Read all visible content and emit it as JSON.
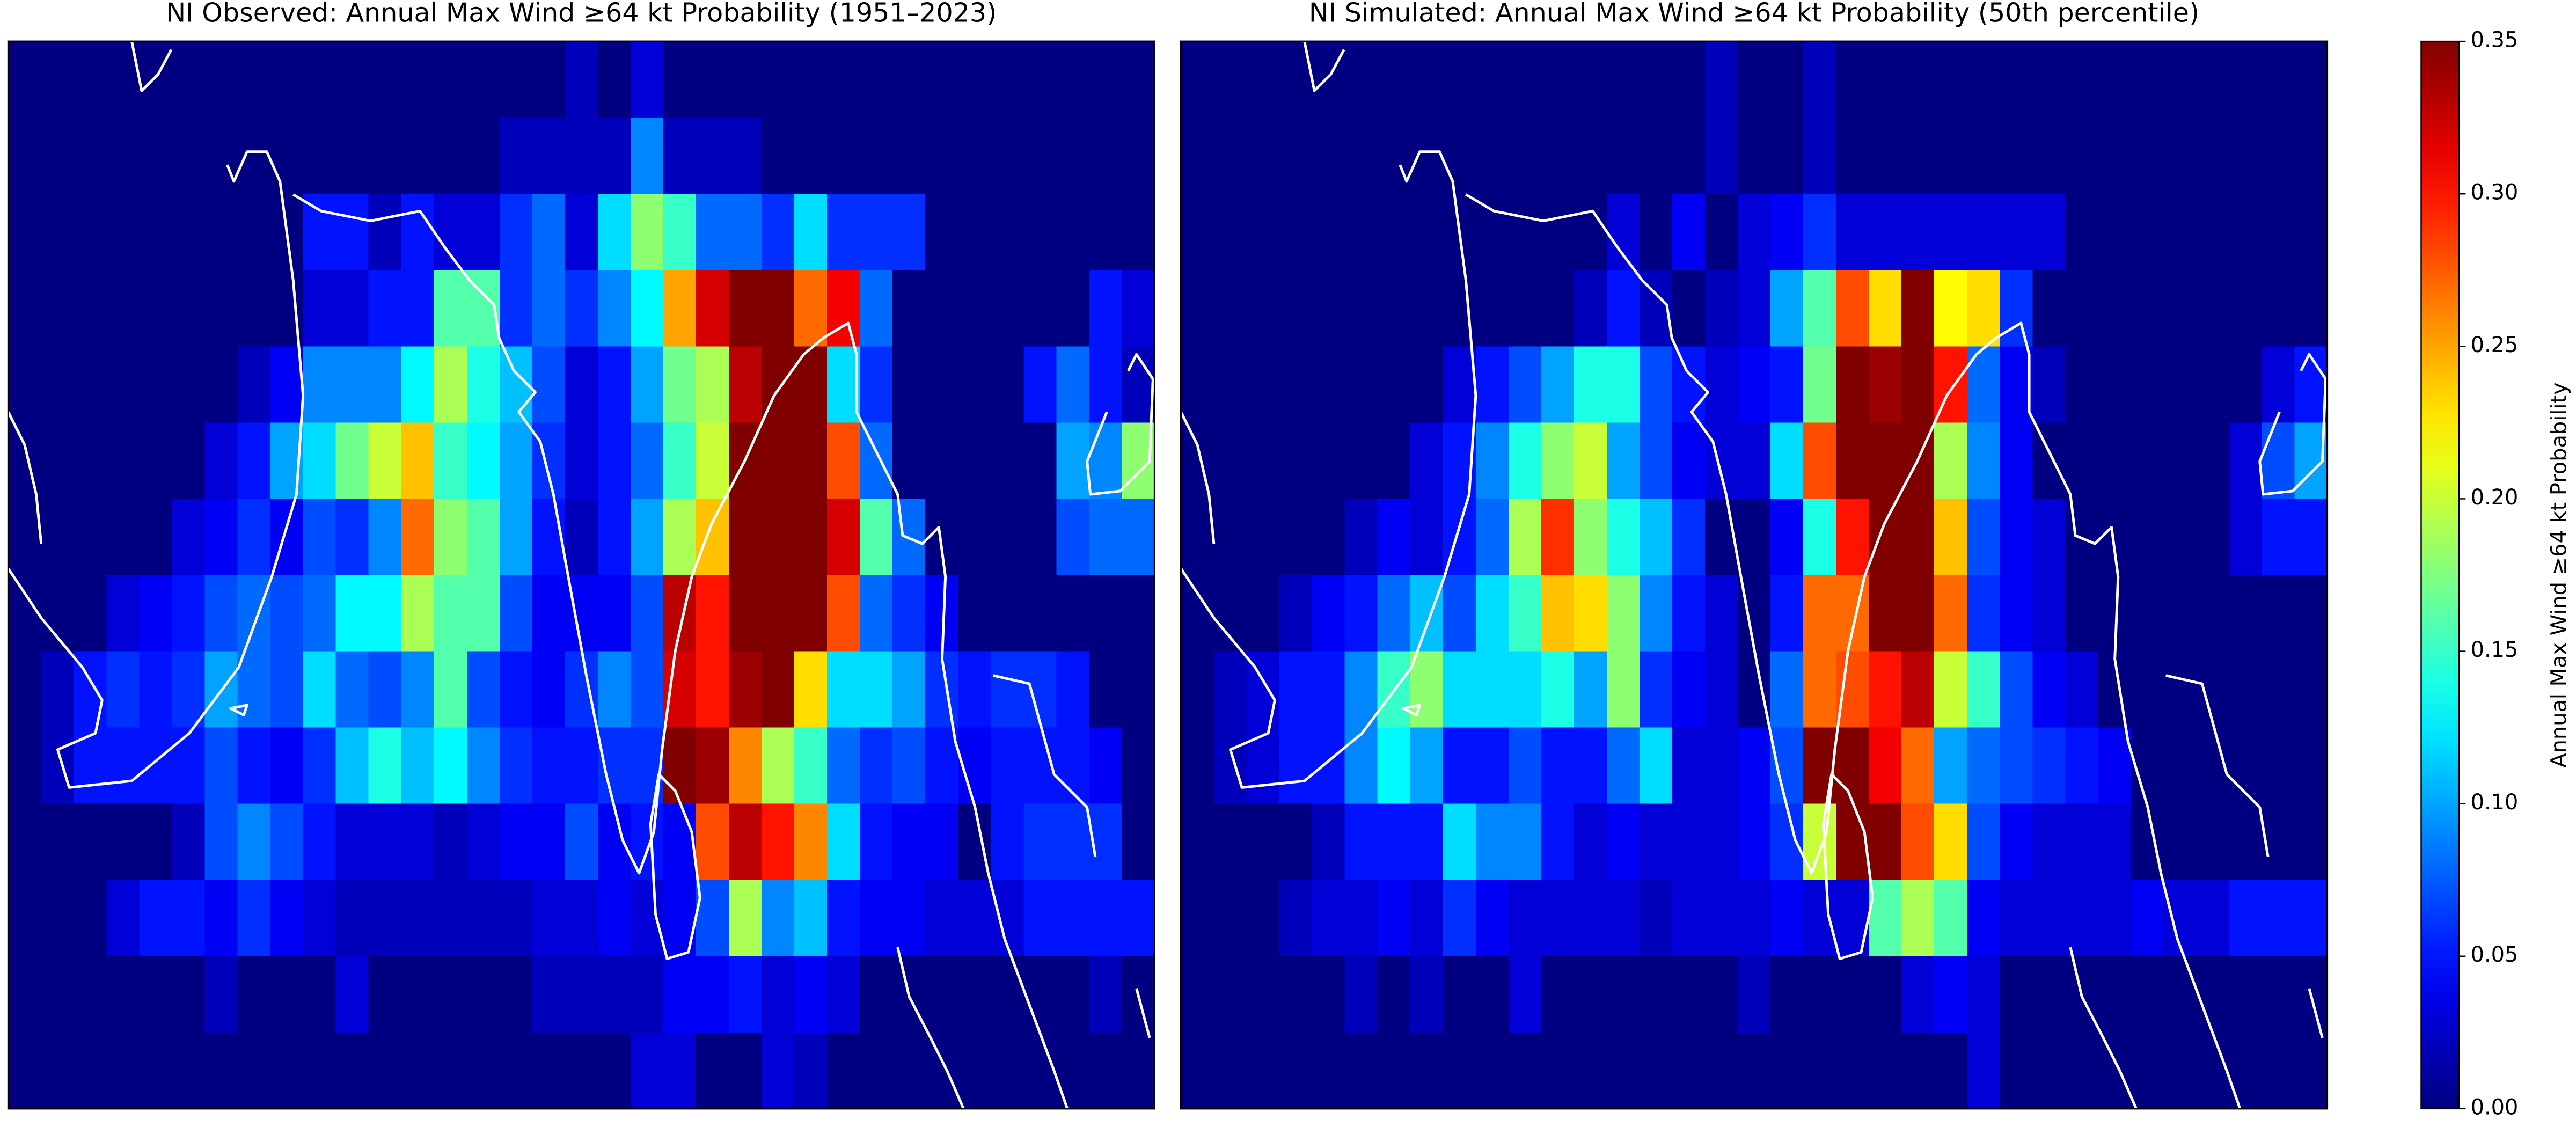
{
  "chart_data": [
    {
      "type": "heatmap",
      "title": "NI Observed: Annual Max Wind ≥64 kt Probability (1951–2023)",
      "values": [
        [
          0,
          0,
          0,
          0,
          0,
          0,
          0,
          0,
          0,
          0,
          0,
          0,
          0,
          0,
          0,
          0,
          0,
          0.02,
          0,
          0.03,
          0,
          0,
          0,
          0,
          0,
          0,
          0,
          0,
          0,
          0,
          0,
          0,
          0,
          0,
          0
        ],
        [
          0,
          0,
          0,
          0,
          0,
          0,
          0,
          0,
          0,
          0,
          0,
          0,
          0,
          0,
          0,
          0.02,
          0.02,
          0.02,
          0.02,
          0.09,
          0.02,
          0.02,
          0.02,
          0,
          0,
          0,
          0,
          0,
          0,
          0,
          0,
          0,
          0,
          0,
          0
        ],
        [
          0,
          0,
          0,
          0,
          0,
          0,
          0,
          0,
          0,
          0.05,
          0.05,
          0.02,
          0.05,
          0.03,
          0.03,
          0.06,
          0.08,
          0.03,
          0.12,
          0.18,
          0.15,
          0.08,
          0.08,
          0.06,
          0.12,
          0.06,
          0.06,
          0.06,
          0,
          0,
          0,
          0,
          0,
          0,
          0
        ],
        [
          0,
          0,
          0,
          0,
          0,
          0,
          0,
          0,
          0,
          0.03,
          0.03,
          0.05,
          0.05,
          0.16,
          0.16,
          0.06,
          0.08,
          0.06,
          0.09,
          0.13,
          0.25,
          0.32,
          0.35,
          0.35,
          0.27,
          0.31,
          0.08,
          0,
          0,
          0,
          0,
          0,
          0,
          0.05,
          0.03
        ],
        [
          0,
          0,
          0,
          0,
          0,
          0,
          0,
          0.02,
          0.04,
          0.09,
          0.09,
          0.09,
          0.13,
          0.19,
          0.14,
          0.11,
          0.07,
          0.03,
          0.05,
          0.1,
          0.17,
          0.19,
          0.33,
          0.35,
          0.35,
          0.12,
          0.06,
          0,
          0,
          0,
          0,
          0.05,
          0.08,
          0.05,
          0.02
        ],
        [
          0,
          0,
          0,
          0,
          0,
          0,
          0.03,
          0.05,
          0.1,
          0.12,
          0.17,
          0.2,
          0.24,
          0.15,
          0.13,
          0.1,
          0.06,
          0.03,
          0.05,
          0.08,
          0.15,
          0.2,
          0.35,
          0.35,
          0.35,
          0.28,
          0.08,
          0,
          0,
          0,
          0,
          0,
          0.1,
          0.09,
          0.18
        ],
        [
          0,
          0,
          0,
          0,
          0,
          0.03,
          0.04,
          0.06,
          0.04,
          0.07,
          0.06,
          0.09,
          0.27,
          0.18,
          0.16,
          0.1,
          0.05,
          0.02,
          0.05,
          0.1,
          0.19,
          0.24,
          0.35,
          0.35,
          0.35,
          0.32,
          0.16,
          0.08,
          0,
          0,
          0,
          0,
          0.07,
          0.08,
          0.08
        ],
        [
          0,
          0,
          0,
          0.03,
          0.04,
          0.05,
          0.07,
          0.08,
          0.07,
          0.08,
          0.13,
          0.13,
          0.19,
          0.16,
          0.16,
          0.07,
          0.04,
          0.04,
          0.04,
          0.07,
          0.33,
          0.3,
          0.35,
          0.35,
          0.35,
          0.28,
          0.08,
          0.06,
          0.04,
          0,
          0,
          0,
          0,
          0,
          0
        ],
        [
          0,
          0.02,
          0.05,
          0.06,
          0.05,
          0.06,
          0.1,
          0.08,
          0.07,
          0.12,
          0.08,
          0.07,
          0.09,
          0.16,
          0.07,
          0.05,
          0.04,
          0.06,
          0.09,
          0.07,
          0.32,
          0.3,
          0.34,
          0.35,
          0.23,
          0.12,
          0.12,
          0.1,
          0.06,
          0.05,
          0.06,
          0.06,
          0.05,
          0,
          0
        ],
        [
          0,
          0.02,
          0.05,
          0.05,
          0.05,
          0.05,
          0.07,
          0.05,
          0.04,
          0.06,
          0.11,
          0.14,
          0.11,
          0.13,
          0.09,
          0.06,
          0.05,
          0.05,
          0.06,
          0.06,
          0.35,
          0.34,
          0.26,
          0.19,
          0.15,
          0.08,
          0.06,
          0.07,
          0.05,
          0.04,
          0.05,
          0.05,
          0.05,
          0.04,
          0
        ],
        [
          0,
          0,
          0,
          0,
          0,
          0.02,
          0.07,
          0.09,
          0.07,
          0.05,
          0.03,
          0.03,
          0.03,
          0.02,
          0.03,
          0.04,
          0.04,
          0.07,
          0.04,
          0.05,
          0.04,
          0.28,
          0.33,
          0.3,
          0.26,
          0.12,
          0.05,
          0.04,
          0.04,
          0,
          0.05,
          0.06,
          0.06,
          0.06,
          0
        ],
        [
          0,
          0,
          0,
          0.03,
          0.05,
          0.05,
          0.04,
          0.06,
          0.04,
          0.03,
          0.02,
          0.02,
          0.02,
          0.02,
          0.02,
          0.02,
          0.03,
          0.03,
          0.04,
          0.03,
          0.04,
          0.07,
          0.19,
          0.09,
          0.11,
          0.05,
          0.04,
          0.04,
          0.03,
          0.03,
          0.03,
          0.05,
          0.05,
          0.05,
          0.05
        ],
        [
          0,
          0,
          0,
          0,
          0,
          0,
          0.02,
          0,
          0,
          0,
          0.03,
          0,
          0,
          0,
          0,
          0,
          0.02,
          0.02,
          0.02,
          0.02,
          0.04,
          0.04,
          0.05,
          0.03,
          0.04,
          0.03,
          0,
          0,
          0,
          0,
          0,
          0,
          0,
          0.02,
          0
        ],
        [
          0,
          0,
          0,
          0,
          0,
          0,
          0,
          0,
          0,
          0,
          0,
          0,
          0,
          0,
          0,
          0,
          0,
          0,
          0,
          0.03,
          0.03,
          0,
          0,
          0.03,
          0.02,
          0,
          0,
          0,
          0,
          0,
          0,
          0,
          0,
          0,
          0
        ]
      ]
    },
    {
      "type": "heatmap",
      "title": "NI Simulated: Annual Max Wind ≥64 kt Probability (50th percentile)",
      "values": [
        [
          0,
          0,
          0,
          0,
          0,
          0,
          0,
          0,
          0,
          0,
          0,
          0,
          0,
          0,
          0,
          0,
          0.02,
          0,
          0,
          0.02,
          0,
          0,
          0,
          0,
          0,
          0,
          0,
          0,
          0,
          0,
          0,
          0,
          0,
          0,
          0
        ],
        [
          0,
          0,
          0,
          0,
          0,
          0,
          0,
          0,
          0,
          0,
          0,
          0,
          0,
          0,
          0,
          0,
          0.02,
          0,
          0,
          0.02,
          0,
          0,
          0,
          0,
          0,
          0,
          0,
          0,
          0,
          0,
          0,
          0,
          0,
          0,
          0
        ],
        [
          0,
          0,
          0,
          0,
          0,
          0,
          0,
          0,
          0,
          0,
          0,
          0,
          0,
          0.03,
          0,
          0.04,
          0,
          0.03,
          0.04,
          0.06,
          0.03,
          0.03,
          0.03,
          0.03,
          0.03,
          0.03,
          0.03,
          0,
          0,
          0,
          0,
          0,
          0,
          0,
          0
        ],
        [
          0,
          0,
          0,
          0,
          0,
          0,
          0,
          0,
          0,
          0,
          0,
          0,
          0.02,
          0.05,
          0.02,
          0,
          0.02,
          0.03,
          0.1,
          0.16,
          0.28,
          0.23,
          0.35,
          0.22,
          0.23,
          0.06,
          0,
          0,
          0,
          0,
          0,
          0,
          0,
          0,
          0
        ],
        [
          0,
          0,
          0,
          0,
          0,
          0,
          0,
          0,
          0.03,
          0.05,
          0.07,
          0.1,
          0.14,
          0.14,
          0.07,
          0.05,
          0.03,
          0.04,
          0.05,
          0.17,
          0.35,
          0.34,
          0.35,
          0.3,
          0.08,
          0.04,
          0.02,
          0,
          0,
          0,
          0,
          0,
          0,
          0.03,
          0.05
        ],
        [
          0,
          0,
          0,
          0,
          0,
          0,
          0,
          0.03,
          0.05,
          0.09,
          0.14,
          0.18,
          0.2,
          0.1,
          0.07,
          0.04,
          0.03,
          0.03,
          0.12,
          0.28,
          0.35,
          0.35,
          0.35,
          0.19,
          0.09,
          0.04,
          0,
          0,
          0,
          0,
          0,
          0,
          0.03,
          0.07,
          0.1
        ],
        [
          0,
          0,
          0,
          0,
          0,
          0.02,
          0.04,
          0.03,
          0.05,
          0.08,
          0.19,
          0.29,
          0.18,
          0.14,
          0.11,
          0.06,
          0,
          0,
          0.04,
          0.14,
          0.3,
          0.35,
          0.35,
          0.24,
          0.07,
          0.04,
          0.03,
          0,
          0,
          0,
          0,
          0,
          0.03,
          0.05,
          0.05
        ],
        [
          0,
          0,
          0,
          0.02,
          0.04,
          0.05,
          0.08,
          0.11,
          0.07,
          0.12,
          0.15,
          0.24,
          0.23,
          0.18,
          0.09,
          0.05,
          0.03,
          0,
          0.05,
          0.27,
          0.27,
          0.35,
          0.35,
          0.27,
          0.06,
          0.04,
          0.03,
          0,
          0,
          0,
          0,
          0,
          0,
          0,
          0
        ],
        [
          0,
          0.02,
          0.03,
          0.05,
          0.05,
          0.09,
          0.15,
          0.18,
          0.12,
          0.12,
          0.12,
          0.14,
          0.1,
          0.18,
          0.06,
          0.04,
          0.03,
          0,
          0.08,
          0.27,
          0.28,
          0.3,
          0.33,
          0.2,
          0.15,
          0.07,
          0.04,
          0.03,
          0,
          0,
          0,
          0,
          0,
          0,
          0
        ],
        [
          0,
          0.02,
          0.03,
          0.05,
          0.05,
          0.09,
          0.13,
          0.1,
          0.05,
          0.05,
          0.07,
          0.05,
          0.05,
          0.08,
          0.12,
          0.03,
          0.03,
          0.04,
          0.07,
          0.35,
          0.35,
          0.31,
          0.27,
          0.1,
          0.08,
          0.07,
          0.06,
          0.05,
          0.04,
          0,
          0,
          0,
          0,
          0,
          0
        ],
        [
          0,
          0,
          0,
          0,
          0.02,
          0.05,
          0.05,
          0.05,
          0.12,
          0.09,
          0.09,
          0.05,
          0.03,
          0.04,
          0.03,
          0.03,
          0.03,
          0.04,
          0.06,
          0.2,
          0.35,
          0.35,
          0.28,
          0.23,
          0.07,
          0.04,
          0.03,
          0.03,
          0.03,
          0,
          0,
          0,
          0,
          0,
          0
        ],
        [
          0,
          0,
          0,
          0.02,
          0.03,
          0.03,
          0.04,
          0.03,
          0.06,
          0.04,
          0.03,
          0.03,
          0.03,
          0.03,
          0.02,
          0.03,
          0.03,
          0.03,
          0.04,
          0.03,
          0.03,
          0.16,
          0.19,
          0.16,
          0.04,
          0.03,
          0.03,
          0.03,
          0.03,
          0.04,
          0.03,
          0.03,
          0.05,
          0.05,
          0.05
        ],
        [
          0,
          0,
          0,
          0,
          0,
          0.02,
          0,
          0.02,
          0,
          0,
          0.03,
          0,
          0,
          0,
          0,
          0,
          0,
          0.02,
          0,
          0,
          0,
          0,
          0.03,
          0.04,
          0.03,
          0,
          0,
          0,
          0,
          0,
          0,
          0,
          0,
          0,
          0
        ],
        [
          0,
          0,
          0,
          0,
          0,
          0,
          0,
          0,
          0,
          0,
          0,
          0,
          0,
          0,
          0,
          0,
          0,
          0,
          0,
          0,
          0,
          0,
          0,
          0,
          0.03,
          0,
          0,
          0,
          0,
          0,
          0,
          0,
          0,
          0,
          0
        ]
      ]
    },
    {
      "type": "colorbar",
      "label": "Annual Max Wind ≥64 kt Probability",
      "colormap": "jet",
      "clim": [
        0,
        0.35
      ],
      "ticks": [
        {
          "value": 0,
          "label": "0.00"
        },
        0.05,
        {
          "value": 0.1,
          "label": "0.10"
        },
        0.15,
        {
          "value": 0.2,
          "label": "0.20"
        },
        0.25,
        {
          "value": 0.3,
          "label": "0.30"
        },
        0.35
      ]
    }
  ]
}
